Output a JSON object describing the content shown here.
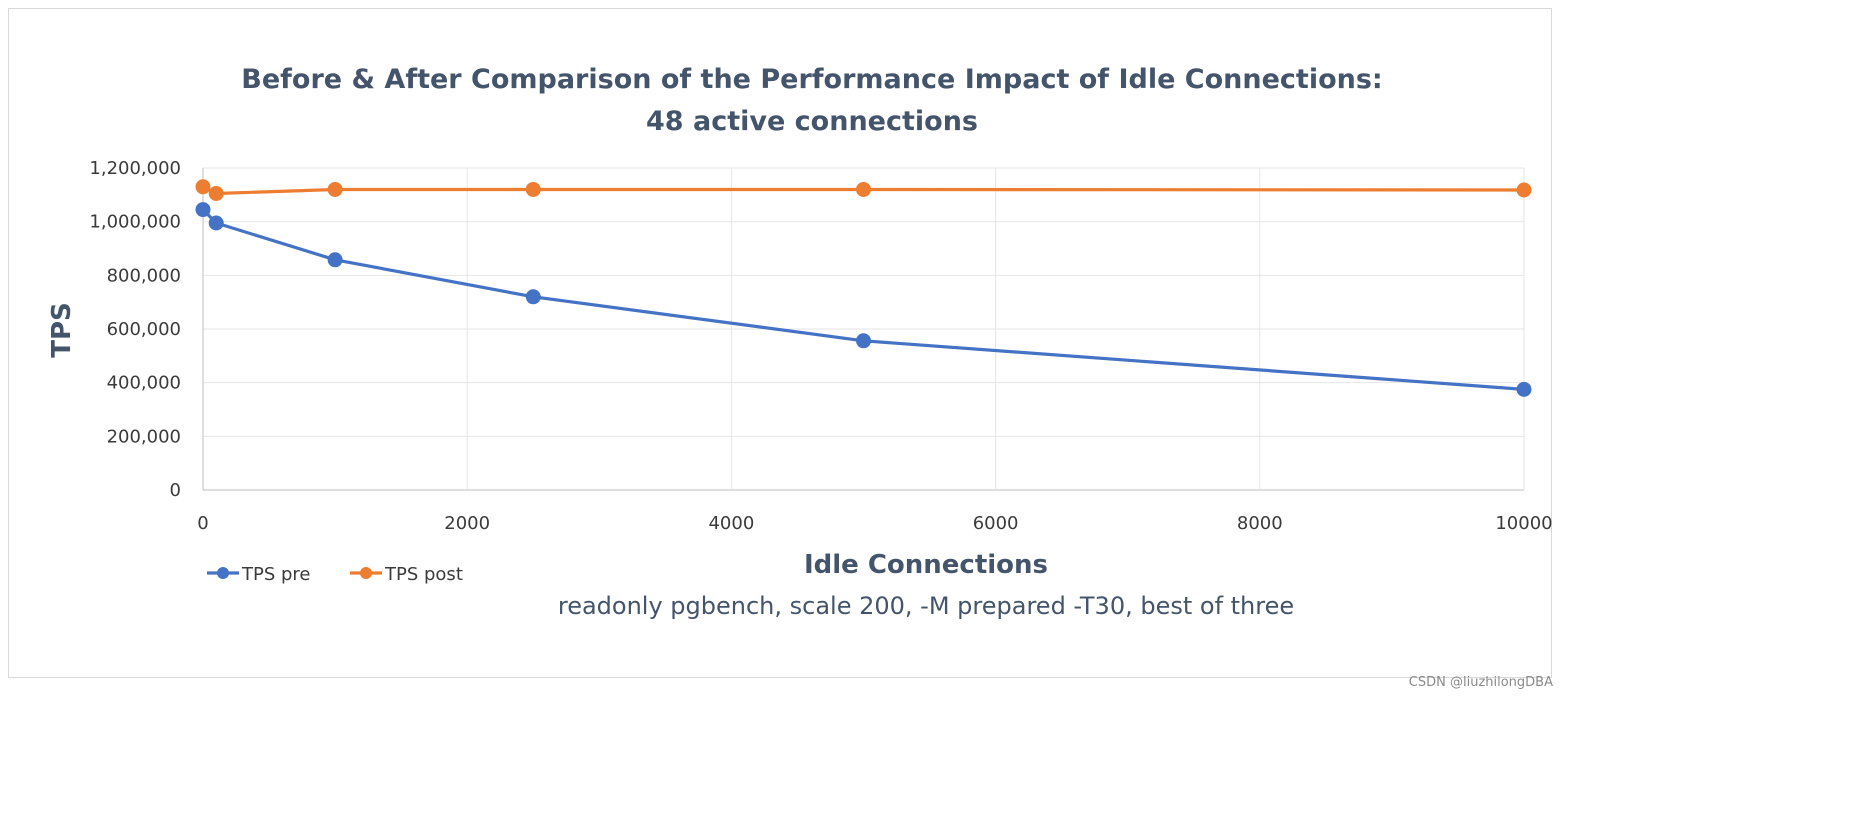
{
  "chart_data": {
    "type": "line",
    "title_line1": "Before & After Comparison of the Performance Impact of Idle Connections:",
    "title_line2": "48 active connections",
    "xlabel": "Idle Connections",
    "ylabel": "TPS",
    "subtitle": "readonly pgbench, scale 200, -M prepared -T30, best of three",
    "xlim": [
      0,
      10000
    ],
    "ylim": [
      0,
      1200000
    ],
    "x_ticks": [
      0,
      2000,
      4000,
      6000,
      8000,
      10000
    ],
    "x_tick_labels": [
      "0",
      "2000",
      "4000",
      "6000",
      "8000",
      "10000"
    ],
    "y_ticks": [
      0,
      200000,
      400000,
      600000,
      800000,
      1000000,
      1200000
    ],
    "y_tick_labels": [
      "0",
      "200,000",
      "400,000",
      "600,000",
      "800,000",
      "1,000,000",
      "1,200,000"
    ],
    "grid": true,
    "legend_position": "bottom-left",
    "series": [
      {
        "name": "TPS pre",
        "color": "#4472c4",
        "points": [
          [
            0,
            1045000
          ],
          [
            100,
            995000
          ],
          [
            1000,
            858000
          ],
          [
            2500,
            720000
          ],
          [
            5000,
            556000
          ],
          [
            10000,
            375000
          ]
        ]
      },
      {
        "name": "TPS post",
        "color": "#ed7d31",
        "points": [
          [
            0,
            1130000
          ],
          [
            100,
            1105000
          ],
          [
            1000,
            1120000
          ],
          [
            2500,
            1120000
          ],
          [
            5000,
            1120000
          ],
          [
            10000,
            1118000
          ]
        ]
      }
    ]
  },
  "watermark": "CSDN @liuzhilongDBA"
}
